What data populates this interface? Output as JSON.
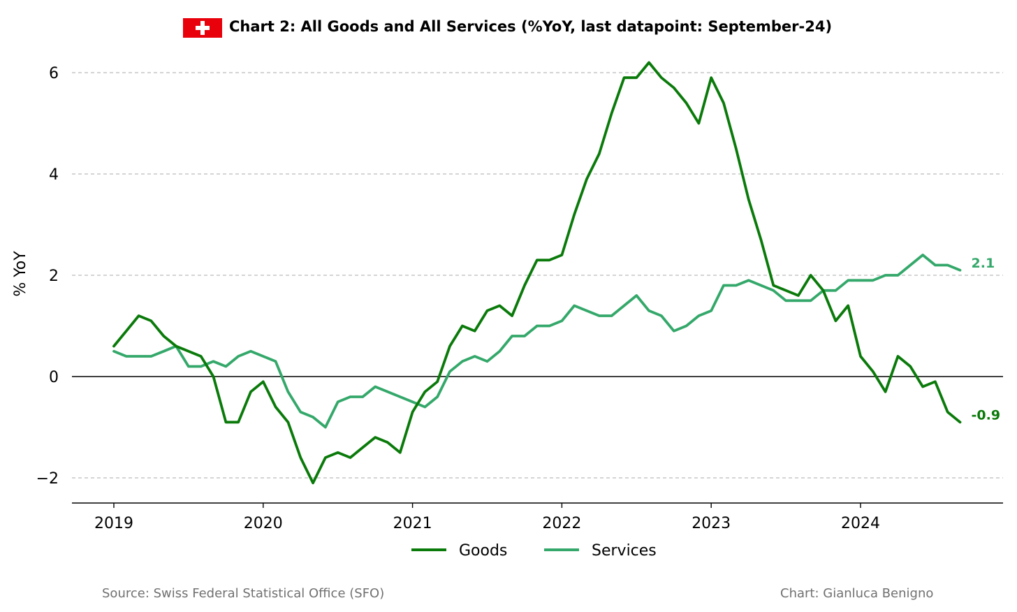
{
  "colors": {
    "goods": "#0a7a0a",
    "services": "#34a86a",
    "grid": "#bbbbbb",
    "zero_line": "#000000",
    "flag_red": "#e8000b",
    "flag_cross": "#ffffff",
    "footer": "#707070"
  },
  "header": {
    "flag_icon": "swiss-flag-icon",
    "title": "Chart 2: All Goods and All Services (%YoY, last datapoint: September-24)"
  },
  "footer": {
    "source": "Source: Swiss Federal Statistical Office (SFO)",
    "credit": "Chart: Gianluca Benigno"
  },
  "chart_data": {
    "type": "line",
    "title": "Chart 2: All Goods and All Services (%YoY, last datapoint: September-24)",
    "ylabel": "% YoY",
    "xlabel": "",
    "x_start": "2019-01",
    "x_end": "2024-09",
    "x_ticks": [
      "2019",
      "2020",
      "2021",
      "2022",
      "2023",
      "2024"
    ],
    "y_ticks": [
      "6",
      "4",
      "2",
      "0",
      "−2"
    ],
    "y_tick_values": [
      6,
      4,
      2,
      0,
      -2
    ],
    "ylim": [
      -2.5,
      6.5
    ],
    "xlim": [
      "2018-09",
      "2025-01"
    ],
    "grid": "horizontal dashed",
    "zero_line": true,
    "legend_position": "bottom-center",
    "series": [
      {
        "name": "Goods",
        "end_label": "-0.9",
        "values": [
          0.6,
          0.9,
          1.2,
          1.1,
          0.8,
          0.6,
          0.5,
          0.4,
          0.0,
          -0.9,
          -0.9,
          -0.3,
          -0.1,
          -0.6,
          -0.9,
          -1.6,
          -2.1,
          -1.6,
          -1.5,
          -1.6,
          -1.4,
          -1.2,
          -1.3,
          -1.5,
          -0.7,
          -0.3,
          -0.1,
          0.6,
          1.0,
          0.9,
          1.3,
          1.4,
          1.2,
          1.8,
          2.3,
          2.3,
          2.4,
          3.2,
          3.9,
          4.4,
          5.2,
          5.9,
          5.9,
          6.2,
          5.9,
          5.7,
          5.4,
          5.0,
          5.9,
          5.4,
          4.5,
          3.5,
          2.7,
          1.8,
          1.7,
          1.6,
          2.0,
          1.7,
          1.1,
          1.4,
          0.4,
          0.1,
          -0.3,
          0.4,
          0.2,
          -0.2,
          -0.1,
          -0.7,
          -0.9
        ]
      },
      {
        "name": "Services",
        "end_label": "2.1",
        "values": [
          0.5,
          0.4,
          0.4,
          0.4,
          0.5,
          0.6,
          0.2,
          0.2,
          0.3,
          0.2,
          0.4,
          0.5,
          0.4,
          0.3,
          -0.3,
          -0.7,
          -0.8,
          -1.0,
          -0.5,
          -0.4,
          -0.4,
          -0.2,
          -0.3,
          -0.4,
          -0.5,
          -0.6,
          -0.4,
          0.1,
          0.3,
          0.4,
          0.3,
          0.5,
          0.8,
          0.8,
          1.0,
          1.0,
          1.1,
          1.4,
          1.3,
          1.2,
          1.2,
          1.4,
          1.6,
          1.3,
          1.2,
          0.9,
          1.0,
          1.2,
          1.3,
          1.8,
          1.8,
          1.9,
          1.8,
          1.7,
          1.5,
          1.5,
          1.5,
          1.7,
          1.7,
          1.9,
          1.9,
          1.9,
          2.0,
          2.0,
          2.2,
          2.4,
          2.2,
          2.2,
          2.1
        ]
      }
    ]
  }
}
